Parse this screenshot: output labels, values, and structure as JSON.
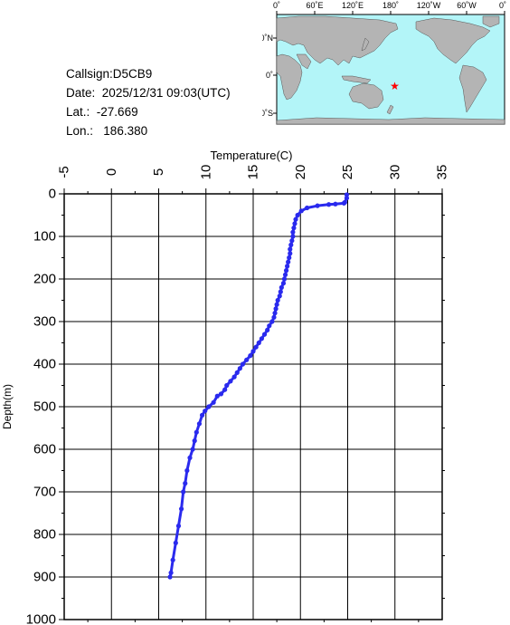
{
  "info": {
    "callsign_label": "Callsign:",
    "callsign": "D5CB9",
    "date_label": "Date:",
    "date": "2025/12/31 09:03(UTC)",
    "lat_label": "Lat.:",
    "lat": "-27.669",
    "lon_label": "Lon.:",
    "lon": "186.380"
  },
  "map": {
    "top_labels": [
      "0˚",
      "60˚E",
      "120˚E",
      "180˚",
      "120˚W",
      "60˚W",
      "0˚"
    ],
    "left_labels": [
      "60˚N",
      "0˚",
      "60˚S"
    ],
    "marker_color": "#ff0000",
    "land_color": "#b4b4b4",
    "ocean_color": "#b3f5f8",
    "station_lat": -27.669,
    "station_lon": 186.38
  },
  "chart_data": {
    "type": "line",
    "xlabel": "Temperature(C)",
    "ylabel": "Depth(m)",
    "xlim": [
      -5,
      35
    ],
    "ylim": [
      0,
      1000
    ],
    "y_inverted": true,
    "x_axis_position": "top",
    "grid": true,
    "x_ticks": [
      "-5",
      "0",
      "5",
      "10",
      "15",
      "20",
      "25",
      "30",
      "35"
    ],
    "y_ticks": [
      "0",
      "100",
      "200",
      "300",
      "400",
      "500",
      "600",
      "700",
      "800",
      "900",
      "1000"
    ],
    "series": [
      {
        "color": "#2a2aee",
        "marker": "circle",
        "points": [
          [
            24.9,
            2
          ],
          [
            24.9,
            10
          ],
          [
            24.7,
            20
          ],
          [
            24.6,
            22
          ],
          [
            23.7,
            24
          ],
          [
            23.0,
            25
          ],
          [
            21.8,
            28
          ],
          [
            20.7,
            33
          ],
          [
            20.1,
            40
          ],
          [
            19.7,
            50
          ],
          [
            19.5,
            60
          ],
          [
            19.4,
            70
          ],
          [
            19.3,
            80
          ],
          [
            19.2,
            90
          ],
          [
            19.2,
            100
          ],
          [
            19.1,
            110
          ],
          [
            19.0,
            120
          ],
          [
            18.9,
            130
          ],
          [
            18.9,
            140
          ],
          [
            18.8,
            150
          ],
          [
            18.7,
            160
          ],
          [
            18.6,
            170
          ],
          [
            18.5,
            180
          ],
          [
            18.4,
            190
          ],
          [
            18.3,
            200
          ],
          [
            18.2,
            210
          ],
          [
            18.0,
            220
          ],
          [
            17.9,
            230
          ],
          [
            17.8,
            240
          ],
          [
            17.6,
            250
          ],
          [
            17.5,
            260
          ],
          [
            17.4,
            270
          ],
          [
            17.3,
            280
          ],
          [
            17.2,
            290
          ],
          [
            17.0,
            300
          ],
          [
            16.7,
            310
          ],
          [
            16.5,
            320
          ],
          [
            16.2,
            330
          ],
          [
            15.9,
            340
          ],
          [
            15.6,
            350
          ],
          [
            15.3,
            360
          ],
          [
            15.0,
            370
          ],
          [
            14.7,
            380
          ],
          [
            14.3,
            390
          ],
          [
            13.9,
            400
          ],
          [
            13.6,
            410
          ],
          [
            13.3,
            420
          ],
          [
            13.0,
            430
          ],
          [
            12.6,
            440
          ],
          [
            12.2,
            450
          ],
          [
            12.0,
            460
          ],
          [
            11.6,
            470
          ],
          [
            11.2,
            475
          ],
          [
            10.8,
            490
          ],
          [
            10.3,
            500
          ],
          [
            9.9,
            510
          ],
          [
            9.6,
            520
          ],
          [
            9.3,
            540
          ],
          [
            9.0,
            560
          ],
          [
            8.8,
            580
          ],
          [
            8.6,
            600
          ],
          [
            8.3,
            620
          ],
          [
            8.0,
            650
          ],
          [
            7.8,
            680
          ],
          [
            7.6,
            700
          ],
          [
            7.4,
            740
          ],
          [
            7.1,
            780
          ],
          [
            6.8,
            820
          ],
          [
            6.5,
            860
          ],
          [
            6.3,
            890
          ],
          [
            6.2,
            900
          ]
        ]
      }
    ]
  }
}
